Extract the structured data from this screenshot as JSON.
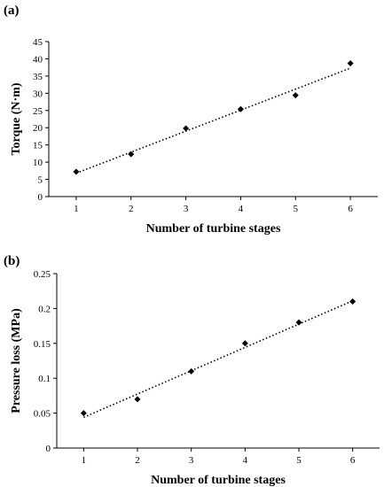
{
  "chart_data": [
    {
      "type": "scatter",
      "panel_label": "(a)",
      "xlabel": "Number of turbine stages",
      "ylabel": "Torque (N·m)",
      "x": [
        1,
        2,
        3,
        4,
        5,
        6
      ],
      "y": [
        7.2,
        12.3,
        19.8,
        25.4,
        29.4,
        38.7
      ],
      "xlim": [
        0.5,
        6.5
      ],
      "ylim": [
        0,
        45
      ],
      "xticks": [
        "1",
        "2",
        "3",
        "4",
        "5",
        "6"
      ],
      "yticks": [
        "0",
        "5",
        "10",
        "15",
        "20",
        "25",
        "30",
        "35",
        "40",
        "45"
      ],
      "trendline": {
        "style": "dotted",
        "x": [
          1,
          6
        ],
        "y": [
          6.8,
          37.3
        ]
      },
      "marker": "diamond",
      "grid": false,
      "color": "#000000"
    },
    {
      "type": "scatter",
      "panel_label": "(b)",
      "xlabel": "Number of turbine stages",
      "ylabel": "Pressure loss (MPa)",
      "x": [
        1,
        2,
        3,
        4,
        5,
        6
      ],
      "y": [
        0.05,
        0.07,
        0.11,
        0.15,
        0.18,
        0.21
      ],
      "xlim": [
        0.5,
        6.5
      ],
      "ylim": [
        0,
        0.25
      ],
      "xticks": [
        "1",
        "2",
        "3",
        "4",
        "5",
        "6"
      ],
      "yticks": [
        "0",
        "0.05",
        "0.1",
        "0.15",
        "0.2",
        "0.25"
      ],
      "trendline": {
        "style": "dotted",
        "x": [
          1,
          6
        ],
        "y": [
          0.044,
          0.211
        ]
      },
      "marker": "diamond",
      "grid": false,
      "color": "#000000"
    }
  ]
}
